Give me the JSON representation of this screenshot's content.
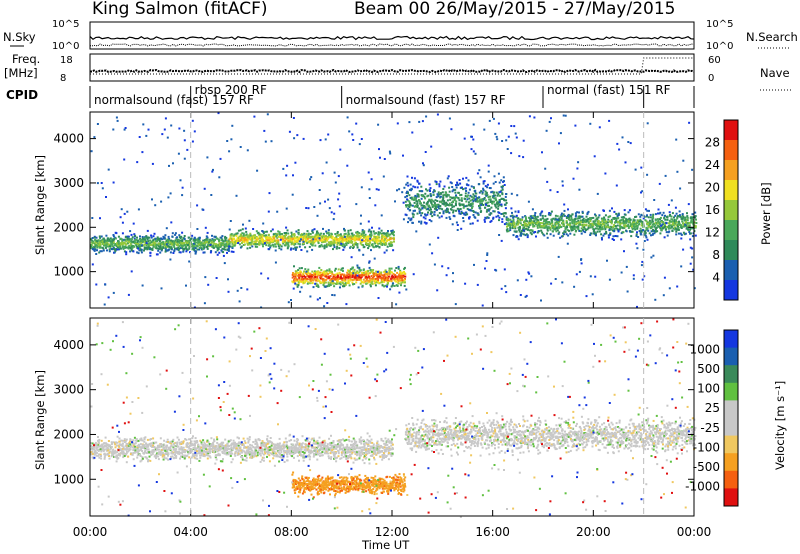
{
  "header": {
    "station": "King Salmon (fitACF)",
    "beam_info": "Beam 00  26/May/2015 - 27/May/2015"
  },
  "top_panels": {
    "nsky_label": "N.Sky",
    "nsky_ticks": [
      "10^5",
      "10^0"
    ],
    "nsearch_label": "N.Search",
    "nsearch_ticks": [
      "10^5",
      "10^0"
    ],
    "freq_label": "Freq.",
    "freq_unit": "[MHz]",
    "freq_ticks": [
      "18",
      "8"
    ],
    "nave_label": "Nave",
    "nave_ticks": [
      "60",
      "0"
    ],
    "cpid_label": "CPID",
    "cpid_segments": [
      {
        "label": "normalsound (fast) 157 RF",
        "start_h": 0,
        "end_h": 4
      },
      {
        "label": "rbsp 200 RF",
        "start_h": 4,
        "end_h": 10
      },
      {
        "label": "normalsound (fast) 157 RF",
        "start_h": 10,
        "end_h": 18
      },
      {
        "label": "normal (fast) 151 RF",
        "start_h": 18,
        "end_h": 22
      },
      {
        "label": "",
        "start_h": 22,
        "end_h": 24
      }
    ]
  },
  "colors": {
    "power": [
      "#1437e0",
      "#1a5fb0",
      "#2f8a5a",
      "#4aa85a",
      "#95c83a",
      "#f0e020",
      "#f5a020",
      "#f56010",
      "#e01010"
    ],
    "velocity": [
      "#e01010",
      "#f56010",
      "#f5a020",
      "#f0c860",
      "#c8c8c8",
      "#c8c8c8",
      "#60c040",
      "#3a8a5a",
      "#1a5fb0",
      "#1437e0"
    ]
  },
  "chart_data": [
    {
      "type": "heatmap",
      "panel": "power",
      "ylabel": "Slant Range [km]",
      "y_ticks": [
        1000,
        2000,
        3000,
        4000
      ],
      "ylim": [
        180,
        4600
      ],
      "x_ticks": [
        "00:00",
        "04:00",
        "08:00",
        "12:00",
        "16:00",
        "20:00",
        "00:00"
      ],
      "xlim_hours": [
        0,
        24
      ],
      "colorbar_label": "Power [dB]",
      "colorbar_ticks": [
        "28",
        "24",
        "20",
        "16",
        "12",
        "8",
        "4"
      ],
      "color_scale": [
        0,
        30
      ],
      "echo_bands": [
        {
          "t_start_h": 0,
          "t_end_h": 5.5,
          "range_center_km": 1650,
          "range_width_km": 280,
          "peak_db": 14
        },
        {
          "t_start_h": 5.5,
          "t_end_h": 12.0,
          "range_center_km": 1750,
          "range_width_km": 300,
          "peak_db": 20
        },
        {
          "t_start_h": 8.0,
          "t_end_h": 12.5,
          "range_center_km": 900,
          "range_width_km": 300,
          "peak_db": 28
        },
        {
          "t_start_h": 12.5,
          "t_end_h": 16.5,
          "range_center_km": 2600,
          "range_width_km": 700,
          "peak_db": 10
        },
        {
          "t_start_h": 16.5,
          "t_end_h": 24.0,
          "range_center_km": 2100,
          "range_width_km": 400,
          "peak_db": 14
        }
      ]
    },
    {
      "type": "heatmap",
      "panel": "velocity",
      "ylabel": "Slant Range [km]",
      "y_ticks": [
        1000,
        2000,
        3000,
        4000
      ],
      "ylim": [
        180,
        4600
      ],
      "x_ticks": [
        "00:00",
        "04:00",
        "08:00",
        "12:00",
        "16:00",
        "20:00",
        "00:00"
      ],
      "xlim_hours": [
        0,
        24
      ],
      "xlabel": "Time UT",
      "colorbar_label": "Velocity [m s⁻¹]",
      "colorbar_ticks": [
        "1000",
        "500",
        "100",
        "25",
        "-25",
        "-100",
        "-500",
        "-1000"
      ],
      "echo_bands": [
        {
          "t_start_h": 0,
          "t_end_h": 12.0,
          "range_center_km": 1700,
          "range_width_km": 350,
          "velocity": 0
        },
        {
          "t_start_h": 8.0,
          "t_end_h": 12.5,
          "range_center_km": 900,
          "range_width_km": 300,
          "velocity": -200
        },
        {
          "t_start_h": 12.5,
          "t_end_h": 24.0,
          "range_center_km": 2000,
          "range_width_km": 500,
          "velocity": 0
        }
      ]
    }
  ]
}
